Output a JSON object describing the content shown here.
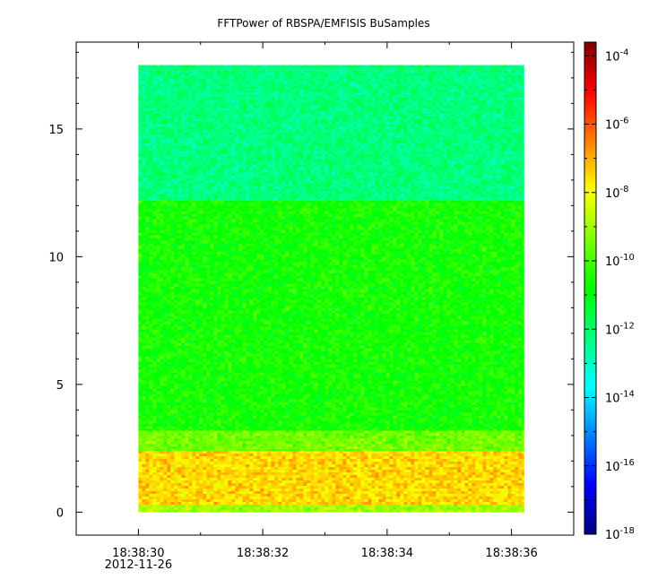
{
  "chart_data": {
    "type": "heatmap",
    "title": "FFTPower of RBSPA/EMFISIS  BuSamples",
    "xlabel": "",
    "ylabel": "",
    "x_ticks": [
      {
        "value": 30,
        "label": "18:38:30"
      },
      {
        "value": 32,
        "label": "18:38:32"
      },
      {
        "value": 34,
        "label": "18:38:34"
      },
      {
        "value": 36,
        "label": "18:38:36"
      }
    ],
    "x_date_label": "2012-11-26",
    "xlim": [
      29.0,
      37.0
    ],
    "data_x_range": [
      30.0,
      36.2
    ],
    "y_ticks": [
      0,
      5,
      10,
      15
    ],
    "ylim": [
      -0.9,
      18.4
    ],
    "data_y_range": [
      0,
      17.5
    ],
    "colorbar": {
      "scale": "log",
      "range_exp": [
        -18,
        -3.6
      ],
      "tick_exps": [
        -18,
        -16,
        -14,
        -12,
        -10,
        -8,
        -6,
        -4
      ],
      "colors": [
        "#00007f",
        "#0000ff",
        "#007fff",
        "#00ffff",
        "#00ff7f",
        "#00ff00",
        "#7fff00",
        "#ffff00",
        "#ff7f00",
        "#ff0000",
        "#7f0000"
      ]
    },
    "bands": [
      {
        "y_range": [
          0.0,
          0.3
        ],
        "power_exp": -9.0
      },
      {
        "y_range": [
          0.3,
          2.4
        ],
        "power_exp": -7.5
      },
      {
        "y_range": [
          2.4,
          3.2
        ],
        "power_exp": -9.5
      },
      {
        "y_range": [
          3.2,
          12.2
        ],
        "power_exp": -10.6
      },
      {
        "y_range": [
          12.2,
          17.5
        ],
        "power_exp": -12.2
      }
    ]
  }
}
